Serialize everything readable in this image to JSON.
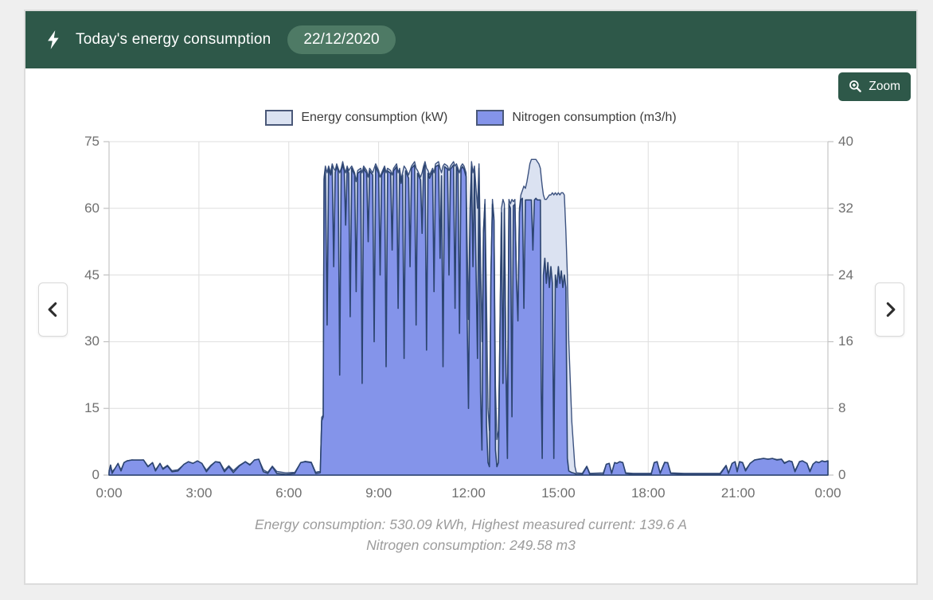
{
  "header": {
    "title": "Today's energy consumption",
    "date_badge": "22/12/2020",
    "icon": "lightning-bolt-icon"
  },
  "toolbar": {
    "zoom_label": "Zoom",
    "zoom_icon": "magnifier-plus-icon"
  },
  "nav": {
    "prev_icon": "chevron-left-icon",
    "next_icon": "chevron-right-icon"
  },
  "footer": {
    "line1": "Energy consumption: 530.09 kWh, Highest measured current: 139.6 A",
    "line2": "Nitrogen consumption: 249.58 m3"
  },
  "colors": {
    "page_bg": "#efefef",
    "card_border": "#dcdcdc",
    "header_green": "#2e5849",
    "badge_green": "#4e7a65",
    "energy_fill": "#dbe2f1",
    "energy_stroke": "#3d5380",
    "nitrogen_fill": "#8494ea",
    "nitrogen_stroke": "#2c4470",
    "grid": "#dedede",
    "axis_line": "#c6c6c6",
    "axis_text": "#6f6f6f",
    "footer_text": "#9c9c9c"
  },
  "chart_data": {
    "type": "area",
    "title": "",
    "xlabel": "",
    "x_ticks": [
      "0:00",
      "3:00",
      "6:00",
      "9:00",
      "12:00",
      "15:00",
      "18:00",
      "21:00",
      "0:00"
    ],
    "x_range_hours": [
      0,
      24
    ],
    "y_left": {
      "label": "Energy consumption (kW)",
      "ticks": [
        0,
        15,
        30,
        45,
        60,
        75
      ],
      "range": [
        0,
        75
      ]
    },
    "y_right": {
      "label": "Nitrogen consumption (m3/h)",
      "ticks": [
        0,
        8,
        16,
        24,
        32,
        40
      ],
      "range": [
        0,
        40
      ]
    },
    "grid": true,
    "legend_position": "top-center",
    "series": [
      {
        "name": "Energy consumption (kW)",
        "axis": "left",
        "fill": "#dbe2f1",
        "stroke": "#3d5380",
        "column": 1
      },
      {
        "name": "Nitrogen consumption (m3/h)",
        "axis": "right",
        "fill": "#8494ea",
        "stroke": "#2c4470",
        "column": 2
      }
    ],
    "points_format": [
      "time_hours",
      "energy_kW",
      "nitrogen_m3h"
    ],
    "points": [
      [
        0,
        1,
        0.3
      ],
      [
        0.05,
        2.2,
        1.2
      ],
      [
        0.1,
        0.8,
        0.2
      ],
      [
        0.2,
        1.5,
        0.8
      ],
      [
        0.3,
        2.5,
        1.4
      ],
      [
        0.4,
        1.2,
        0.5
      ],
      [
        0.5,
        2.8,
        1.5
      ],
      [
        0.6,
        3.2,
        1.7
      ],
      [
        0.75,
        3.4,
        1.8
      ],
      [
        0.95,
        3.3,
        1.8
      ],
      [
        1.15,
        3.4,
        1.8
      ],
      [
        1.3,
        2,
        1
      ],
      [
        1.45,
        2.8,
        1.5
      ],
      [
        1.55,
        1.2,
        0.5
      ],
      [
        1.7,
        2.6,
        1.4
      ],
      [
        1.8,
        1.5,
        0.7
      ],
      [
        1.95,
        2.2,
        1.1
      ],
      [
        2.1,
        1,
        0.4
      ],
      [
        2.3,
        1.2,
        0.5
      ],
      [
        2.5,
        2.4,
        1.3
      ],
      [
        2.65,
        3,
        1.6
      ],
      [
        2.8,
        2.6,
        1.4
      ],
      [
        2.95,
        3.1,
        1.7
      ],
      [
        3.1,
        2.6,
        1.4
      ],
      [
        3.25,
        1.1,
        0.4
      ],
      [
        3.4,
        2.2,
        1.1
      ],
      [
        3.55,
        3,
        1.6
      ],
      [
        3.7,
        2.9,
        1.5
      ],
      [
        3.85,
        1.1,
        0.4
      ],
      [
        4,
        2.1,
        1
      ],
      [
        4.15,
        1,
        0.3
      ],
      [
        4.35,
        2.2,
        1.1
      ],
      [
        4.55,
        3,
        1.6
      ],
      [
        4.7,
        2.4,
        1.2
      ],
      [
        4.85,
        3.3,
        1.8
      ],
      [
        5,
        3.5,
        1.9
      ],
      [
        5.15,
        1.2,
        0.4
      ],
      [
        5.3,
        0.6,
        0.2
      ],
      [
        5.45,
        2,
        1
      ],
      [
        5.6,
        0.8,
        0.2
      ],
      [
        5.9,
        0.5,
        0.1
      ],
      [
        6.2,
        0.6,
        0.2
      ],
      [
        6.4,
        2.8,
        1.5
      ],
      [
        6.55,
        3.1,
        1.6
      ],
      [
        6.75,
        2.9,
        1.5
      ],
      [
        6.9,
        0.6,
        0.2
      ],
      [
        7.05,
        0.9,
        0.3
      ],
      [
        7.1,
        13,
        6.5
      ],
      [
        7.15,
        13.5,
        7
      ],
      [
        7.18,
        67,
        35.5
      ],
      [
        7.22,
        69.5,
        36.6
      ],
      [
        7.28,
        68,
        18
      ],
      [
        7.33,
        69.5,
        36.8
      ],
      [
        7.4,
        68,
        36
      ],
      [
        7.45,
        70,
        37
      ],
      [
        7.5,
        69,
        25
      ],
      [
        7.55,
        68.5,
        36.3
      ],
      [
        7.6,
        70,
        37
      ],
      [
        7.65,
        69,
        36.5
      ],
      [
        7.7,
        68,
        12
      ],
      [
        7.75,
        69,
        36.5
      ],
      [
        7.8,
        70.5,
        37.2
      ],
      [
        7.85,
        69,
        36.5
      ],
      [
        7.9,
        68,
        30
      ],
      [
        7.95,
        69.5,
        36.8
      ],
      [
        8,
        68.5,
        36.2
      ],
      [
        8.05,
        69,
        19
      ],
      [
        8.1,
        69.5,
        36.8
      ],
      [
        8.2,
        68,
        36
      ],
      [
        8.25,
        66,
        22
      ],
      [
        8.3,
        68.5,
        36.2
      ],
      [
        8.4,
        69,
        36.5
      ],
      [
        8.45,
        68,
        11
      ],
      [
        8.5,
        69.5,
        36.8
      ],
      [
        8.6,
        68.5,
        36.2
      ],
      [
        8.65,
        67,
        28
      ],
      [
        8.7,
        69,
        36.5
      ],
      [
        8.8,
        68,
        36
      ],
      [
        8.85,
        69,
        16
      ],
      [
        8.9,
        70,
        37
      ],
      [
        9,
        68.5,
        36.2
      ],
      [
        9.05,
        67,
        24
      ],
      [
        9.1,
        68,
        36
      ],
      [
        9.2,
        69.5,
        36.8
      ],
      [
        9.25,
        68,
        13
      ],
      [
        9.3,
        69,
        36.5
      ],
      [
        9.4,
        68.5,
        36.2
      ],
      [
        9.45,
        67.5,
        27
      ],
      [
        9.5,
        69,
        36.5
      ],
      [
        9.6,
        70,
        37
      ],
      [
        9.65,
        68,
        20
      ],
      [
        9.7,
        69,
        36.5
      ],
      [
        9.75,
        66.5,
        35
      ],
      [
        9.8,
        68,
        36
      ],
      [
        9.85,
        69.5,
        14
      ],
      [
        9.9,
        69,
        36.5
      ],
      [
        10,
        67.5,
        35.6
      ],
      [
        10.05,
        68.5,
        25
      ],
      [
        10.1,
        69.5,
        36.8
      ],
      [
        10.2,
        70.5,
        37.2
      ],
      [
        10.25,
        69,
        18
      ],
      [
        10.3,
        68.5,
        36.2
      ],
      [
        10.4,
        67,
        35.4
      ],
      [
        10.45,
        68,
        29
      ],
      [
        10.5,
        69.5,
        36.8
      ],
      [
        10.55,
        70.5,
        37.2
      ],
      [
        10.6,
        69,
        15
      ],
      [
        10.65,
        68.5,
        36.2
      ],
      [
        10.7,
        67.5,
        35.6
      ],
      [
        10.8,
        69,
        36.5
      ],
      [
        10.85,
        68,
        22
      ],
      [
        10.9,
        70,
        37
      ],
      [
        11,
        70.5,
        37.2
      ],
      [
        11.05,
        69,
        26
      ],
      [
        11.1,
        68,
        35.9
      ],
      [
        11.15,
        69.5,
        13
      ],
      [
        11.2,
        70,
        37
      ],
      [
        11.3,
        69.5,
        36.7
      ],
      [
        11.35,
        68.5,
        24
      ],
      [
        11.4,
        69.5,
        36.7
      ],
      [
        11.5,
        70.5,
        37.2
      ],
      [
        11.55,
        69.5,
        20
      ],
      [
        11.6,
        70,
        37
      ],
      [
        11.65,
        69,
        36.4
      ],
      [
        11.7,
        68,
        17
      ],
      [
        11.75,
        69.5,
        36.7
      ],
      [
        11.8,
        70,
        37
      ],
      [
        11.85,
        69.5,
        36.7
      ],
      [
        11.92,
        68,
        35.8
      ],
      [
        11.95,
        55,
        20
      ],
      [
        12,
        35,
        8
      ],
      [
        12.05,
        60,
        30
      ],
      [
        12.1,
        70.5,
        37
      ],
      [
        12.15,
        68,
        25
      ],
      [
        12.2,
        69.5,
        36.5
      ],
      [
        12.3,
        60,
        14
      ],
      [
        12.35,
        70,
        36.8
      ],
      [
        12.4,
        50,
        10
      ],
      [
        12.45,
        30,
        3
      ],
      [
        12.5,
        55,
        29
      ],
      [
        12.55,
        62,
        32.5
      ],
      [
        12.6,
        40,
        6
      ],
      [
        12.65,
        15,
        1.5
      ],
      [
        12.7,
        10,
        1
      ],
      [
        12.75,
        45,
        24
      ],
      [
        12.8,
        62,
        32.5
      ],
      [
        12.85,
        58,
        30.5
      ],
      [
        12.9,
        20,
        3
      ],
      [
        12.95,
        8,
        1
      ],
      [
        13,
        10,
        1.5
      ],
      [
        13.05,
        32,
        17
      ],
      [
        13.1,
        60,
        31.5
      ],
      [
        13.15,
        62,
        11
      ],
      [
        13.2,
        61,
        32
      ],
      [
        13.25,
        25,
        13
      ],
      [
        13.3,
        13,
        2
      ],
      [
        13.35,
        62,
        32.5
      ],
      [
        13.4,
        61,
        32
      ],
      [
        13.45,
        62,
        7
      ],
      [
        13.5,
        61.5,
        32.3
      ],
      [
        13.55,
        62,
        32.5
      ],
      [
        13.6,
        45,
        23.5
      ],
      [
        13.65,
        35,
        18.5
      ],
      [
        13.7,
        60,
        31.5
      ],
      [
        13.75,
        63,
        33
      ],
      [
        13.8,
        64,
        33.2
      ],
      [
        13.85,
        65,
        20
      ],
      [
        13.9,
        64.5,
        33
      ],
      [
        13.95,
        66,
        33
      ],
      [
        14,
        68,
        33
      ],
      [
        14.05,
        70,
        33
      ],
      [
        14.1,
        71,
        33
      ],
      [
        14.15,
        71,
        27
      ],
      [
        14.2,
        71,
        33
      ],
      [
        14.25,
        71,
        33.2
      ],
      [
        14.3,
        70.5,
        33
      ],
      [
        14.35,
        70,
        33
      ],
      [
        14.4,
        69,
        33
      ],
      [
        14.43,
        67,
        10
      ],
      [
        14.46,
        65,
        2
      ],
      [
        14.5,
        63,
        24
      ],
      [
        14.55,
        62,
        26
      ],
      [
        14.6,
        62,
        23
      ],
      [
        14.65,
        62.5,
        25.5
      ],
      [
        14.7,
        63,
        22.5
      ],
      [
        14.75,
        63,
        25
      ],
      [
        14.8,
        63.5,
        23
      ],
      [
        14.85,
        63,
        2
      ],
      [
        14.9,
        63.5,
        24
      ],
      [
        14.95,
        63,
        22.5
      ],
      [
        15,
        63.5,
        25
      ],
      [
        15.05,
        63,
        23
      ],
      [
        15.1,
        63.5,
        24.5
      ],
      [
        15.15,
        63.5,
        22.5
      ],
      [
        15.2,
        63,
        24
      ],
      [
        15.25,
        55,
        22.5
      ],
      [
        15.3,
        45,
        2
      ],
      [
        15.35,
        30,
        0.5
      ],
      [
        15.45,
        12,
        0.3
      ],
      [
        15.55,
        2,
        0.2
      ],
      [
        15.6,
        0.5,
        0.1
      ],
      [
        15.8,
        0.4,
        0.1
      ],
      [
        15.95,
        2,
        1
      ],
      [
        16.05,
        0.4,
        0.1
      ],
      [
        16.5,
        0.5,
        0.1
      ],
      [
        16.6,
        2.4,
        1.3
      ],
      [
        16.7,
        2.6,
        1.4
      ],
      [
        16.78,
        0.5,
        0.2
      ],
      [
        16.88,
        2.8,
        1.5
      ],
      [
        16.95,
        2.6,
        1.4
      ],
      [
        17.05,
        3,
        1.6
      ],
      [
        17.15,
        2.8,
        1.5
      ],
      [
        17.25,
        0.5,
        0.2
      ],
      [
        17.5,
        0.4,
        0.1
      ],
      [
        18.1,
        0.4,
        0.1
      ],
      [
        18.2,
        2.8,
        1.5
      ],
      [
        18.3,
        2.9,
        1.6
      ],
      [
        18.4,
        0.5,
        0.2
      ],
      [
        18.55,
        2.9,
        1.5
      ],
      [
        18.65,
        2.8,
        1.5
      ],
      [
        18.75,
        0.5,
        0.2
      ],
      [
        19.2,
        0.4,
        0.1
      ],
      [
        19.8,
        0.4,
        0.1
      ],
      [
        20.4,
        0.4,
        0.1
      ],
      [
        20.6,
        2.2,
        1.1
      ],
      [
        20.68,
        0.5,
        0.2
      ],
      [
        20.8,
        2.6,
        1.4
      ],
      [
        20.9,
        3,
        1.6
      ],
      [
        20.97,
        1,
        0.4
      ],
      [
        21.05,
        3,
        1.6
      ],
      [
        21.15,
        2.8,
        1.5
      ],
      [
        21.25,
        1.2,
        0.5
      ],
      [
        21.4,
        2.6,
        1.4
      ],
      [
        21.55,
        3.4,
        1.8
      ],
      [
        21.7,
        3.6,
        1.9
      ],
      [
        21.85,
        3.7,
        2
      ],
      [
        22,
        3.6,
        1.9
      ],
      [
        22.15,
        3.7,
        2
      ],
      [
        22.3,
        3.5,
        1.8
      ],
      [
        22.45,
        3.6,
        1.9
      ],
      [
        22.55,
        2.8,
        1.4
      ],
      [
        22.7,
        3.2,
        1.7
      ],
      [
        22.8,
        3,
        1.6
      ],
      [
        22.9,
        1,
        0.4
      ],
      [
        23.05,
        3,
        1.6
      ],
      [
        23.15,
        3.2,
        1.7
      ],
      [
        23.3,
        2.6,
        1.4
      ],
      [
        23.4,
        1,
        0.4
      ],
      [
        23.5,
        2.4,
        1.3
      ],
      [
        23.6,
        3,
        1.6
      ],
      [
        23.7,
        2.8,
        1.5
      ],
      [
        23.8,
        3.2,
        1.7
      ],
      [
        23.9,
        3,
        1.6
      ],
      [
        24,
        3.2,
        1.7
      ]
    ],
    "summary": {
      "energy_total_kWh": 530.09,
      "highest_measured_current_A": 139.6,
      "nitrogen_total_m3": 249.58
    }
  }
}
